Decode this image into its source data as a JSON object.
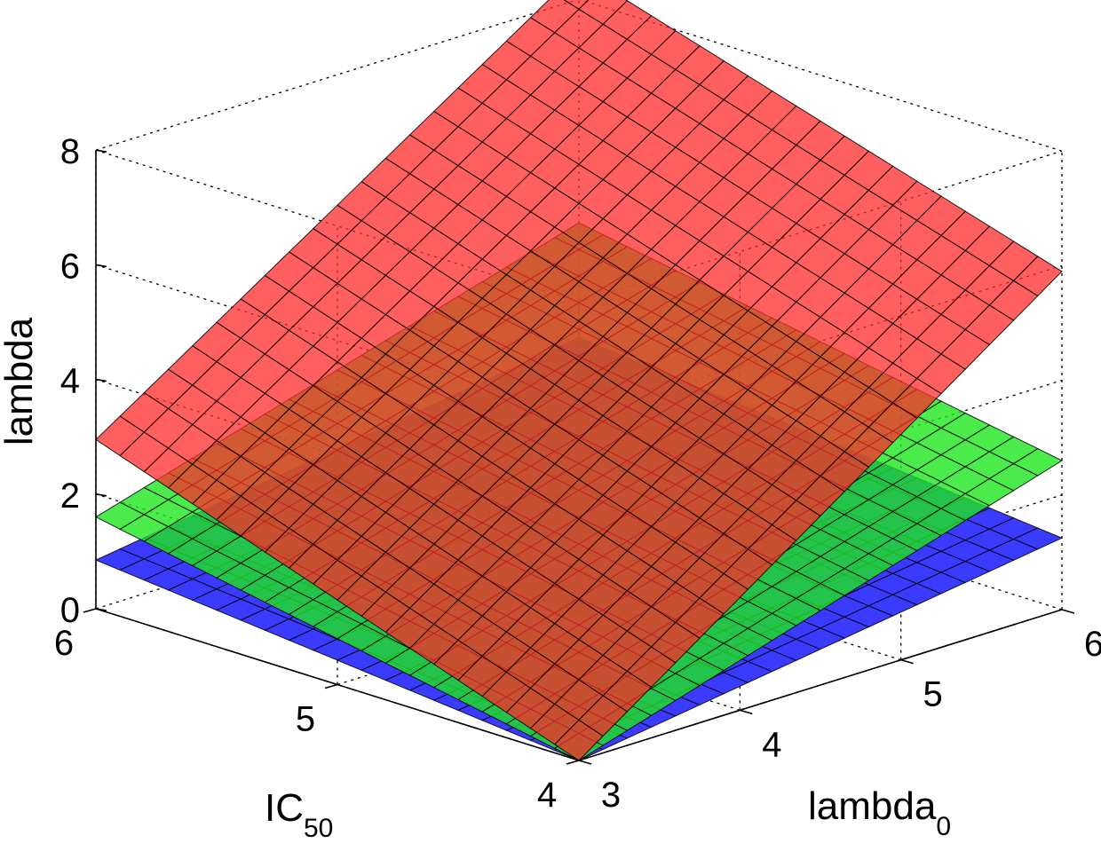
{
  "chart_data": {
    "type": "surface",
    "xlabel": {
      "main": "lambda",
      "sub": "0"
    },
    "ylabel": {
      "main": "IC",
      "sub": "50"
    },
    "zlabel": "lambda",
    "x_range": [
      3,
      6
    ],
    "y_range": [
      4,
      6
    ],
    "z_range": [
      0,
      8
    ],
    "x_ticks": [
      "3",
      "4",
      "5",
      "6"
    ],
    "y_ticks": [
      "4",
      "5",
      "6"
    ],
    "z_ticks": [
      "0",
      "2",
      "4",
      "6",
      "8"
    ],
    "grid": true,
    "series": [
      {
        "color": "#3b3bff",
        "opacity": 1.0,
        "z_at_corners": {
          "x3_y4": 0.0,
          "x6_y4": 1.25,
          "x3_y6": 0.85,
          "x6_y6": 2.1
        }
      },
      {
        "color": "#1fe61f",
        "opacity": 0.8,
        "z_at_corners": {
          "x3_y4": 0.0,
          "x6_y4": 2.6,
          "x3_y6": 1.6,
          "x6_y6": 4.1
        }
      },
      {
        "color": "#ff2a2a",
        "opacity": 0.75,
        "z_at_corners": {
          "x3_y4": 0.0,
          "x6_y4": 5.9,
          "x3_y6": 2.95,
          "x6_y6": 8.5
        }
      }
    ]
  }
}
